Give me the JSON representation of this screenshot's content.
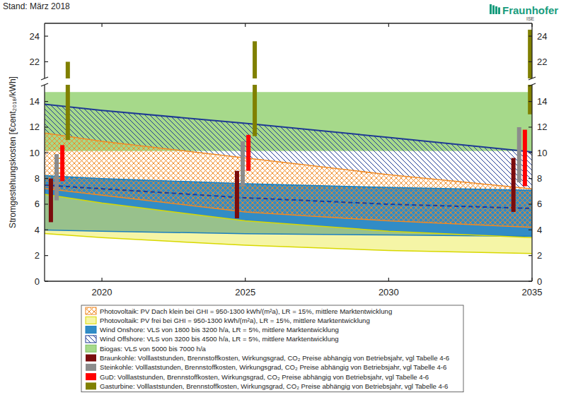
{
  "chart_data": {
    "type": "band",
    "annotations": [
      "Stand: März 2018",
      "Fraunhofer",
      "ISE"
    ],
    "y_label": "Stromgestehungskosten [€cent₂₀₁₈/kWh]",
    "x": [
      2018,
      2020,
      2025,
      2030,
      2035
    ],
    "xlim": [
      2018,
      2035
    ],
    "xticks": [
      2020,
      2025,
      2030,
      2035
    ],
    "ylim": [
      0,
      25
    ],
    "ybreak": [
      15.3,
      20.7
    ],
    "yticks": [
      0,
      2,
      4,
      6,
      8,
      10,
      12,
      14,
      22,
      24
    ],
    "grid": false,
    "legend": "bottom",
    "series": [
      {
        "name": "Photovoltaik: PV Dach klein bei GHI = 950-1300 kWh/(m²a), LR = 15%, mittlere Marktentwicklung",
        "type": "area",
        "color": "#f08a24",
        "values": [
          [
            7.23,
            11.54
          ],
          [
            6.7,
            10.9
          ],
          [
            5.4,
            9.6
          ],
          [
            4.7,
            8.3
          ],
          [
            4.2,
            7.2
          ]
        ]
      },
      {
        "name": "Photovoltaik: PV frei bei GHI = 950-1300 kWh/(m²a), LR = 15%, mittlere Marktentwicklung",
        "type": "area",
        "color": "#ecec5c",
        "values": [
          [
            3.71,
            6.77
          ],
          [
            3.4,
            6.1
          ],
          [
            2.8,
            4.7
          ],
          [
            2.4,
            3.9
          ],
          [
            2.16,
            3.4
          ]
        ]
      },
      {
        "name": "Wind Onshore: VLS von 1800 bis 3200 h/a, LR = 5%, mittlere Marktentwicklung",
        "type": "area",
        "color": "#1b7fc0",
        "values": [
          [
            3.99,
            8.23
          ],
          [
            3.9,
            8.0
          ],
          [
            3.7,
            7.6
          ],
          [
            3.6,
            7.3
          ],
          [
            3.49,
            7.09
          ]
        ]
      },
      {
        "name": "Wind Offshore: VLS von 3200 bis 4500 h/a, LR = 5%, mittlere Marktentwicklung",
        "type": "area",
        "color": "#1f3a93",
        "values": [
          [
            7.49,
            13.79
          ],
          [
            7.2,
            13.3
          ],
          [
            6.5,
            12.3
          ],
          [
            6.0,
            11.2
          ],
          [
            5.67,
            10.07
          ]
        ]
      },
      {
        "name": "Biogas: VLS von 5000 bis 7000 h/a",
        "type": "area",
        "color": "#a6d98a",
        "values": [
          [
            10.14,
            14.74
          ],
          [
            10.14,
            14.74
          ],
          [
            10.14,
            14.74
          ],
          [
            10.14,
            14.74
          ],
          [
            10.14,
            14.74
          ]
        ]
      },
      {
        "name": "Braunkohle: Volllaststunden, Brennstoffkosten, Wirkungsgrad, CO₂ Preise abhängig von Betriebsjahr, vgl Tabelle 4-6",
        "type": "bar",
        "color": "#7b0c0c",
        "x": [
          2018.22,
          2024.71,
          2034.35
        ],
        "values": [
          [
            4.6,
            8.0
          ],
          [
            4.9,
            8.6
          ],
          [
            5.4,
            9.6
          ]
        ]
      },
      {
        "name": "Steinkohle: Volllaststunden, Brennstoffkosten, Wirkungsgrad, CO₂ Preise abhängig von Betriebsjahr, vgl Tabelle 4-6",
        "type": "bar",
        "color": "#8c8c8c",
        "x": [
          2018.42,
          2024.91,
          2034.55
        ],
        "values": [
          [
            6.3,
            9.9
          ],
          [
            7.4,
            10.9
          ],
          [
            7.7,
            12.0
          ]
        ]
      },
      {
        "name": "GuD: Volllaststunden, Brennstoffkosten, Wirkungsgrad, CO₂ Preise abhängig von Betriebsjahr, vgl Tabelle 4-6",
        "type": "bar",
        "color": "#ff0000",
        "x": [
          2018.62,
          2025.11,
          2034.75
        ],
        "values": [
          [
            7.8,
            10.6
          ],
          [
            8.6,
            11.4
          ],
          [
            7.4,
            11.8
          ]
        ]
      },
      {
        "name": "Gasturbine: Volllaststunden, Brennstoffkosten, Wirkungsgrad, CO₂ Preise abhängig von Betriebsjahr, vgl Tabelle 4-6",
        "type": "bar",
        "color": "#808000",
        "x": [
          2018.81,
          2025.33,
          2034.93
        ],
        "values": [
          [
            11.0,
            22.0
          ],
          [
            11.3,
            23.6
          ],
          [
            13.0,
            24.5
          ]
        ]
      }
    ]
  }
}
